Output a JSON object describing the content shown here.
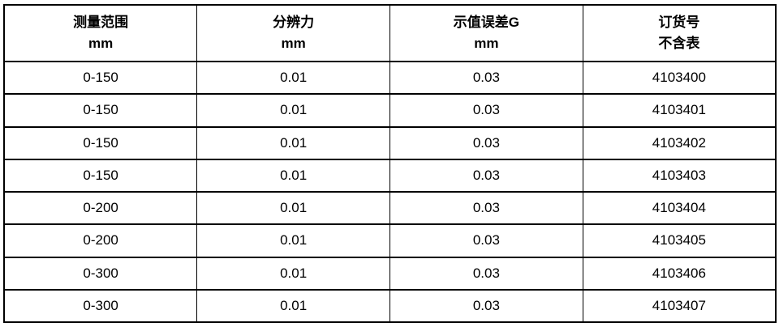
{
  "colors": {
    "background": "#ffffff",
    "border": "#000000",
    "text": "#000000"
  },
  "table": {
    "columns": [
      {
        "title": "测量范围",
        "unit": "mm"
      },
      {
        "title": "分辨力",
        "unit": "mm"
      },
      {
        "title": "示值误差G",
        "unit": "mm"
      },
      {
        "title": "订货号",
        "unit": "不含表"
      }
    ],
    "rows": [
      [
        "0-150",
        "0.01",
        "0.03",
        "4103400"
      ],
      [
        "0-150",
        "0.01",
        "0.03",
        "4103401"
      ],
      [
        "0-150",
        "0.01",
        "0.03",
        "4103402"
      ],
      [
        "0-150",
        "0.01",
        "0.03",
        "4103403"
      ],
      [
        "0-200",
        "0.01",
        "0.03",
        "4103404"
      ],
      [
        "0-200",
        "0.01",
        "0.03",
        "4103405"
      ],
      [
        "0-300",
        "0.01",
        "0.03",
        "4103406"
      ],
      [
        "0-300",
        "0.01",
        "0.03",
        "4103407"
      ]
    ]
  }
}
